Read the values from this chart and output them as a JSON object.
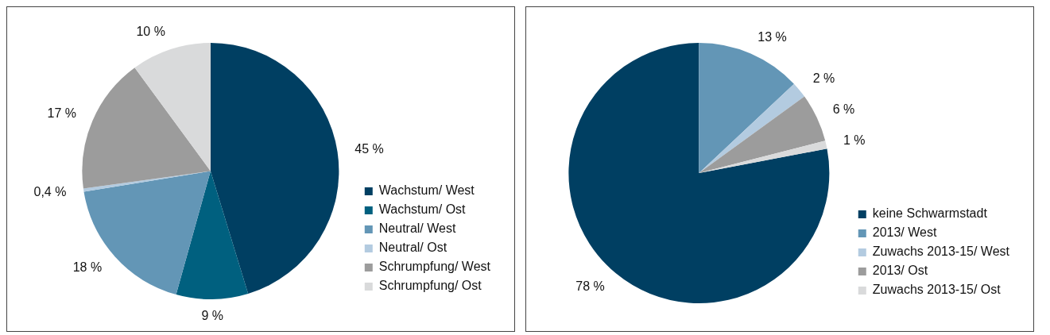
{
  "chart_data": [
    {
      "type": "pie",
      "categories": [
        "Wachstum/ West",
        "Wachstum/ Ost",
        "Neutral/ West",
        "Neutral/ Ost",
        "Schrumpfung/ West",
        "Schrumpfung/ Ost"
      ],
      "values": [
        45,
        9,
        18,
        0.4,
        17,
        10
      ],
      "value_labels": [
        "45 %",
        "9 %",
        "18 %",
        "0,4 %",
        "17 %",
        "10 %"
      ],
      "colors": [
        "#003f62",
        "#00607f",
        "#6396b6",
        "#b3cbe0",
        "#9c9c9c",
        "#d9dadb"
      ],
      "legend": "right"
    },
    {
      "type": "pie",
      "categories": [
        "keine Schwarmstadt",
        "2013/ West",
        "Zuwachs 2013-15/ West",
        "2013/ Ost",
        "Zuwachs 2013-15/ Ost"
      ],
      "values": [
        78,
        13,
        2,
        6,
        1
      ],
      "value_labels": [
        "78 %",
        "13 %",
        "2 %",
        "6 %",
        "1 %"
      ],
      "colors": [
        "#003f62",
        "#6396b6",
        "#b3cbe0",
        "#9c9c9c",
        "#d9dadb"
      ],
      "legend": "right"
    }
  ]
}
